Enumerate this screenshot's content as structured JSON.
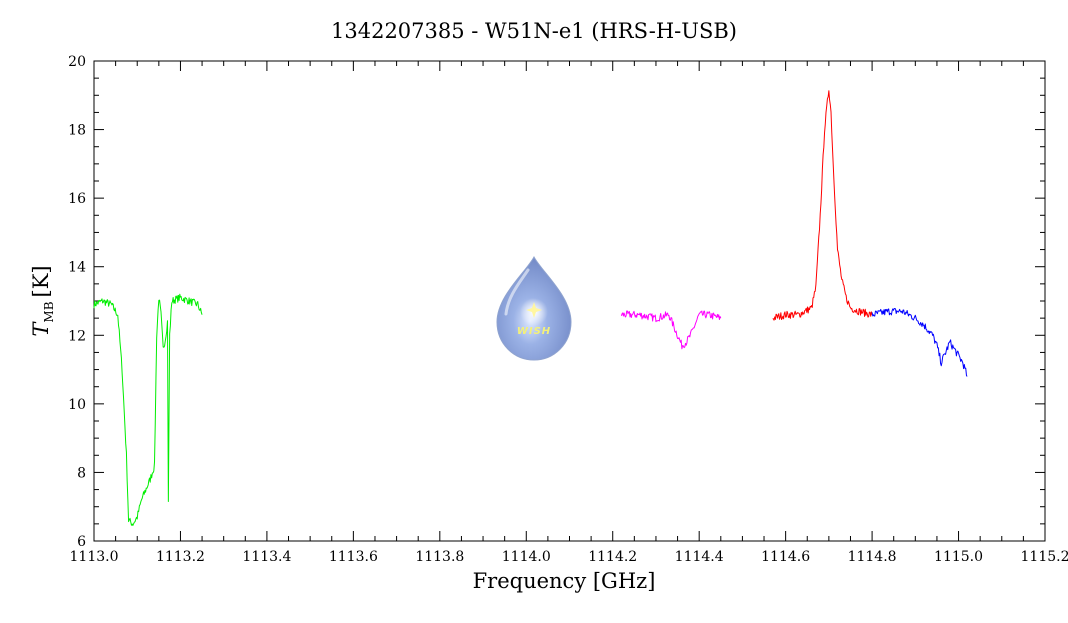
{
  "chart_data": {
    "type": "line",
    "title": "1342207385 - W51N-e1 (HRS-H-USB)",
    "xlabel": "Frequency [GHz]",
    "ylabel_symbol": "T",
    "ylabel_subscript": "MB",
    "ylabel_unit": "[K]",
    "xlim": [
      1113.0,
      1115.2
    ],
    "ylim": [
      6,
      20
    ],
    "x_ticks": [
      1113.0,
      1113.2,
      1113.4,
      1113.6,
      1113.8,
      1114.0,
      1114.2,
      1114.4,
      1114.6,
      1114.8,
      1115.0,
      1115.2
    ],
    "x_tick_labels": [
      "1113.0",
      "1113.2",
      "1113.4",
      "1113.6",
      "1113.8",
      "1114.0",
      "1114.2",
      "1114.4",
      "1114.6",
      "1114.8",
      "1115.0",
      "1115.2"
    ],
    "y_ticks": [
      6,
      8,
      10,
      12,
      14,
      16,
      18,
      20
    ],
    "y_tick_labels": [
      "6",
      "8",
      "10",
      "12",
      "14",
      "16",
      "18",
      "20"
    ],
    "grid": false,
    "logo_text": "WISH",
    "series": [
      {
        "color": "#00ee00",
        "x": [
          1113.0,
          1113.02,
          1113.04,
          1113.055,
          1113.065,
          1113.075,
          1113.08,
          1113.09,
          1113.1,
          1113.11,
          1113.13,
          1113.14,
          1113.145,
          1113.15,
          1113.155,
          1113.16,
          1113.165,
          1113.17,
          1113.172,
          1113.175,
          1113.18,
          1113.2,
          1113.22,
          1113.24,
          1113.25
        ],
        "y": [
          12.9,
          13.0,
          12.9,
          12.6,
          11.0,
          8.5,
          6.6,
          6.5,
          6.7,
          7.2,
          7.8,
          8.2,
          12.0,
          13.1,
          12.6,
          11.6,
          11.9,
          12.4,
          7.1,
          12.0,
          13.0,
          13.1,
          13.0,
          12.9,
          12.6
        ]
      },
      {
        "color": "#ff00ff",
        "x": [
          1114.22,
          1114.26,
          1114.3,
          1114.33,
          1114.34,
          1114.35,
          1114.36,
          1114.37,
          1114.38,
          1114.39,
          1114.4,
          1114.42,
          1114.45
        ],
        "y": [
          12.6,
          12.6,
          12.5,
          12.6,
          12.3,
          12.0,
          11.7,
          11.8,
          12.0,
          12.3,
          12.6,
          12.6,
          12.5
        ]
      },
      {
        "color": "#ff0000",
        "x": [
          1114.57,
          1114.6,
          1114.63,
          1114.66,
          1114.67,
          1114.68,
          1114.69,
          1114.7,
          1114.705,
          1114.71,
          1114.72,
          1114.73,
          1114.74,
          1114.75,
          1114.77,
          1114.8
        ],
        "y": [
          12.5,
          12.6,
          12.6,
          12.8,
          13.4,
          15.5,
          18.0,
          19.2,
          18.5,
          17.0,
          14.5,
          13.6,
          13.1,
          12.8,
          12.7,
          12.6
        ]
      },
      {
        "color": "#0000ff",
        "x": [
          1114.8,
          1114.84,
          1114.87,
          1114.9,
          1114.92,
          1114.94,
          1114.95,
          1114.96,
          1114.97,
          1114.98,
          1114.99,
          1115.0,
          1115.01,
          1115.02
        ],
        "y": [
          12.6,
          12.7,
          12.7,
          12.5,
          12.3,
          12.0,
          11.7,
          11.2,
          11.5,
          11.8,
          11.6,
          11.4,
          11.2,
          10.8
        ]
      }
    ]
  }
}
